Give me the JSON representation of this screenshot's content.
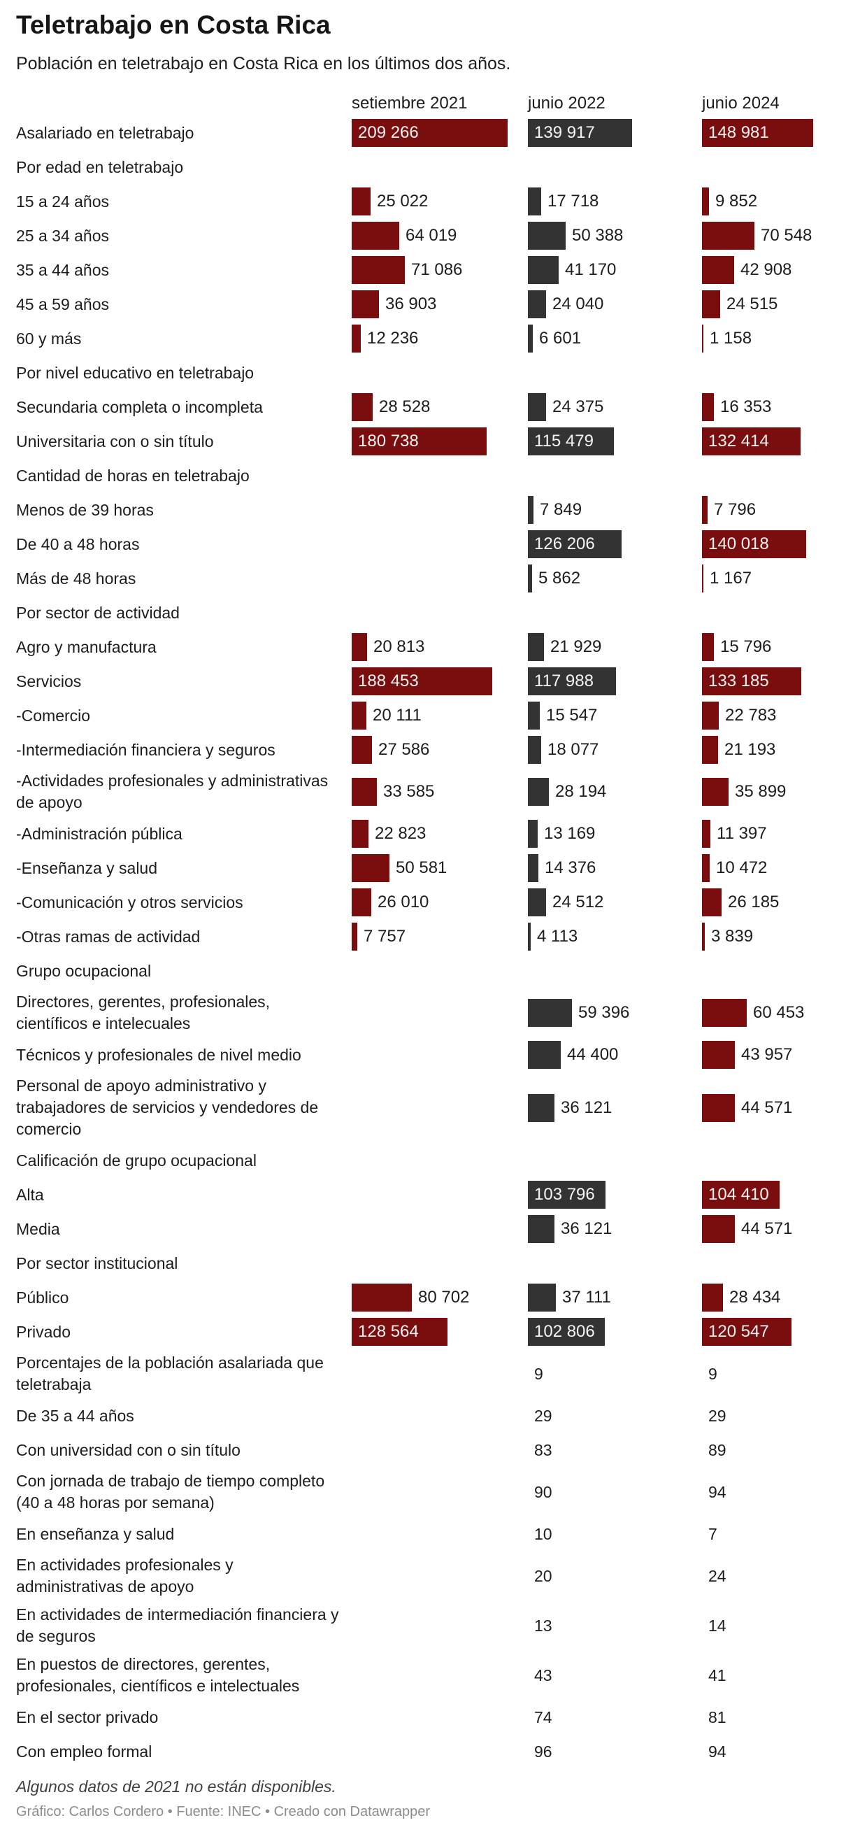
{
  "header": {
    "title": "Teletrabajo en Costa Rica",
    "subtitle": "Población en teletrabajo en Costa Rica en los últimos dos años."
  },
  "chart_data": {
    "type": "bar",
    "title": "Teletrabajo en Costa Rica",
    "subtitle": "Población en teletrabajo en Costa Rica en los últimos dos años.",
    "orientation": "horizontal",
    "grid": false,
    "legend_position": "column-headers-top",
    "value_range": [
      0,
      209266
    ],
    "max_value": 209266,
    "colors": {
      "dark_red": "#7a0e0e",
      "dark_gray": "#333333",
      "label_text": "#1d1d1d",
      "value_text_inside": "#f7f3f3"
    },
    "columns": [
      {
        "label": "setiembre 2021",
        "color": "#7a0e0e"
      },
      {
        "label": "junio 2022",
        "color": "#333333"
      },
      {
        "label": "junio 2024",
        "color": "#7a0e0e"
      }
    ],
    "rows": [
      {
        "type": "bar",
        "label": "Asalariado en teletrabajo",
        "values": [
          209266,
          139917,
          148981
        ]
      },
      {
        "type": "section",
        "label": "Por edad en teletrabajo"
      },
      {
        "type": "bar",
        "label": "15 a 24 años",
        "values": [
          25022,
          17718,
          9852
        ]
      },
      {
        "type": "bar",
        "label": "25 a 34 años",
        "values": [
          64019,
          50388,
          70548
        ]
      },
      {
        "type": "bar",
        "label": "35 a 44 años",
        "values": [
          71086,
          41170,
          42908
        ]
      },
      {
        "type": "bar",
        "label": "45 a 59 años",
        "values": [
          36903,
          24040,
          24515
        ]
      },
      {
        "type": "bar",
        "label": "60 y más",
        "values": [
          12236,
          6601,
          1158
        ]
      },
      {
        "type": "section",
        "label": "Por nivel educativo en teletrabajo"
      },
      {
        "type": "bar",
        "label": "Secundaria completa o incompleta",
        "values": [
          28528,
          24375,
          16353
        ]
      },
      {
        "type": "bar",
        "label": "Universitaria con o sin título",
        "values": [
          180738,
          115479,
          132414
        ]
      },
      {
        "type": "section",
        "label": "Cantidad de horas en teletrabajo"
      },
      {
        "type": "bar",
        "label": "Menos de 39 horas",
        "values": [
          null,
          7849,
          7796
        ]
      },
      {
        "type": "bar",
        "label": "De 40 a 48 horas",
        "values": [
          null,
          126206,
          140018
        ]
      },
      {
        "type": "bar",
        "label": "Más de 48 horas",
        "values": [
          null,
          5862,
          1167
        ]
      },
      {
        "type": "section",
        "label": "Por sector de actividad"
      },
      {
        "type": "bar",
        "label": "Agro y manufactura",
        "values": [
          20813,
          21929,
          15796
        ]
      },
      {
        "type": "bar",
        "label": "Servicios",
        "values": [
          188453,
          117988,
          133185
        ]
      },
      {
        "type": "bar",
        "label": "-Comercio",
        "values": [
          20111,
          15547,
          22783
        ]
      },
      {
        "type": "bar",
        "label": "-Intermediación financiera y seguros",
        "values": [
          27586,
          18077,
          21193
        ]
      },
      {
        "type": "bar",
        "label": "-Actividades profesionales y administrativas de apoyo",
        "values": [
          33585,
          28194,
          35899
        ]
      },
      {
        "type": "bar",
        "label": "-Administración pública",
        "values": [
          22823,
          13169,
          11397
        ]
      },
      {
        "type": "bar",
        "label": "-Enseñanza y salud",
        "values": [
          50581,
          14376,
          10472
        ]
      },
      {
        "type": "bar",
        "label": "-Comunicación y otros servicios",
        "values": [
          26010,
          24512,
          26185
        ]
      },
      {
        "type": "bar",
        "label": "-Otras ramas de actividad",
        "values": [
          7757,
          4113,
          3839
        ]
      },
      {
        "type": "section",
        "label": "Grupo ocupacional"
      },
      {
        "type": "bar",
        "label": "Directores, gerentes, profesionales, científicos e intelecuales",
        "values": [
          null,
          59396,
          60453
        ]
      },
      {
        "type": "bar",
        "label": "Técnicos y profesionales de nivel medio",
        "values": [
          null,
          44400,
          43957
        ]
      },
      {
        "type": "bar",
        "label": "Personal de apoyo administrativo y trabajadores de servicios y vendedores de comercio",
        "values": [
          null,
          36121,
          44571
        ]
      },
      {
        "type": "section",
        "label": "Calificación de grupo ocupacional"
      },
      {
        "type": "bar",
        "label": "Alta",
        "values": [
          null,
          103796,
          104410
        ]
      },
      {
        "type": "bar",
        "label": "Media",
        "values": [
          null,
          36121,
          44571
        ]
      },
      {
        "type": "section",
        "label": "Por sector institucional"
      },
      {
        "type": "bar",
        "label": "Público",
        "values": [
          80702,
          37111,
          28434
        ]
      },
      {
        "type": "bar",
        "label": "Privado",
        "values": [
          128564,
          102806,
          120547
        ]
      },
      {
        "type": "number",
        "label": "Porcentajes de la población asalariada que teletrabaja",
        "values": [
          null,
          9,
          9
        ]
      },
      {
        "type": "number",
        "label": "De 35 a 44 años",
        "values": [
          null,
          29,
          29
        ]
      },
      {
        "type": "number",
        "label": "Con universidad con o sin título",
        "values": [
          null,
          83,
          89
        ]
      },
      {
        "type": "number",
        "label": "Con jornada de trabajo de tiempo completo (40 a 48 horas por semana)",
        "values": [
          null,
          90,
          94
        ]
      },
      {
        "type": "number",
        "label": "En enseñanza y salud",
        "values": [
          null,
          10,
          7
        ]
      },
      {
        "type": "number",
        "label": "En actividades profesionales y administrativas de apoyo",
        "values": [
          null,
          20,
          24
        ]
      },
      {
        "type": "number",
        "label": "En actividades de intermediación financiera y de seguros",
        "values": [
          null,
          13,
          14
        ]
      },
      {
        "type": "number",
        "label": "En puestos de directores, gerentes, profesionales, científicos e intelectuales",
        "values": [
          null,
          43,
          41
        ]
      },
      {
        "type": "number",
        "label": "En el sector privado",
        "values": [
          null,
          74,
          81
        ]
      },
      {
        "type": "number",
        "label": "Con empleo formal",
        "values": [
          null,
          96,
          94
        ]
      }
    ],
    "notes": "Algunos datos de 2021 no están disponibles.",
    "byline": "Gráfico: Carlos Cordero • Fuente: INEC • Creado con Datawrapper"
  },
  "footer": {
    "note": "Algunos datos de 2021 no están disponibles.",
    "byline": "Gráfico: Carlos Cordero • Fuente: INEC • Creado con Datawrapper"
  }
}
